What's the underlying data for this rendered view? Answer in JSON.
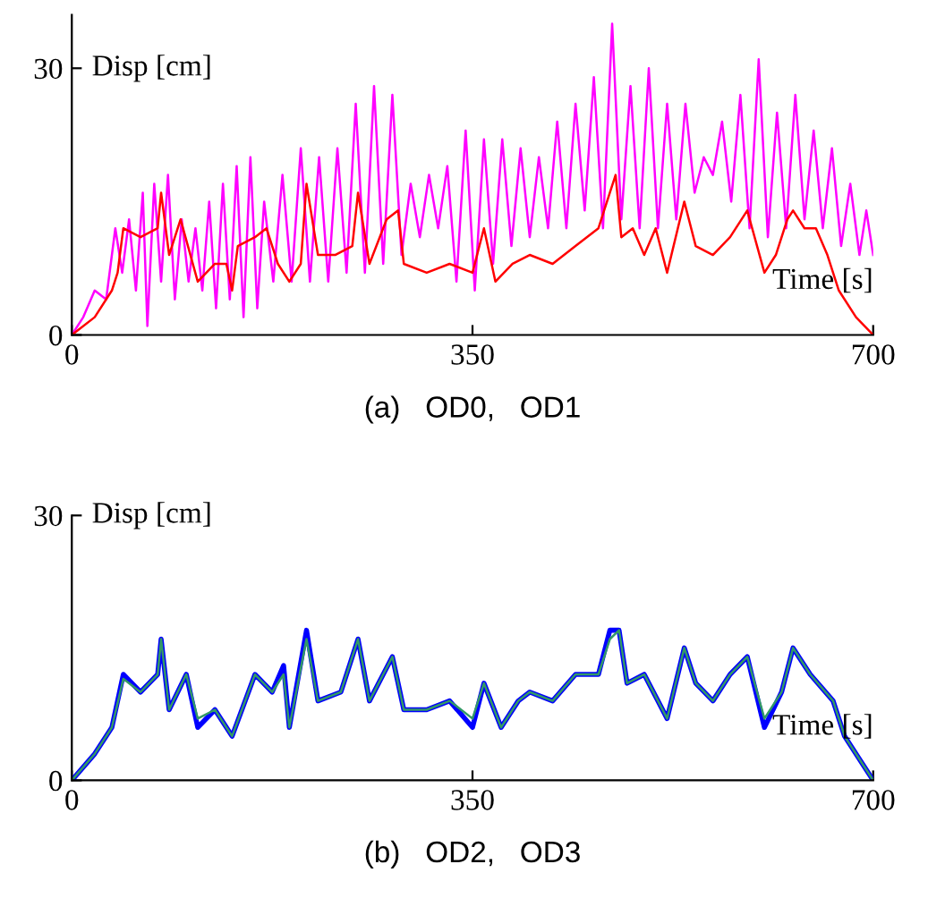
{
  "chart_data": [
    {
      "type": "line",
      "xlabel": "Time [s]",
      "ylabel": "Disp [cm]",
      "annotations": [
        "(a)   OD0,   OD1"
      ],
      "xlim": [
        0,
        700
      ],
      "ylim": [
        0,
        36
      ],
      "xticks": [
        0,
        350,
        700
      ],
      "yticks": [
        0,
        30
      ],
      "series": [
        {
          "color": "#ff00ff",
          "x": [
            0,
            10,
            20,
            30,
            38,
            44,
            50,
            56,
            62,
            66,
            72,
            78,
            84,
            90,
            96,
            102,
            108,
            114,
            120,
            126,
            132,
            138,
            144,
            150,
            156,
            162,
            168,
            176,
            184,
            192,
            200,
            208,
            216,
            224,
            232,
            240,
            248,
            256,
            264,
            272,
            280,
            288,
            296,
            304,
            312,
            320,
            328,
            336,
            344,
            352,
            360,
            368,
            376,
            384,
            392,
            400,
            408,
            416,
            424,
            432,
            440,
            448,
            456,
            464,
            472,
            480,
            488,
            496,
            504,
            512,
            520,
            528,
            536,
            544,
            552,
            560,
            568,
            576,
            584,
            592,
            600,
            608,
            616,
            624,
            632,
            640,
            648,
            656,
            664,
            672,
            680,
            688,
            694,
            700
          ],
          "values": [
            0,
            2,
            5,
            4,
            12,
            7,
            13,
            5,
            16,
            1,
            17,
            6,
            18,
            4,
            13,
            6,
            12,
            5,
            15,
            3,
            17,
            4,
            19,
            2,
            20,
            3,
            15,
            6,
            18,
            6,
            21,
            6,
            20,
            6,
            21,
            7,
            26,
            7,
            28,
            8,
            27,
            9,
            17,
            11,
            18,
            12,
            19,
            6,
            23,
            5,
            22,
            8,
            22,
            10,
            21,
            11,
            20,
            12,
            24,
            12,
            26,
            14,
            29,
            12,
            35,
            13,
            28,
            12,
            30,
            12,
            26,
            13,
            26,
            16,
            20,
            18,
            24,
            15,
            27,
            12,
            31,
            11,
            25,
            12,
            27,
            13,
            23,
            12,
            21,
            10,
            17,
            9,
            14,
            9
          ]
        },
        {
          "color": "#ff0000",
          "x": [
            0,
            20,
            35,
            40,
            45,
            60,
            75,
            78,
            85,
            95,
            110,
            125,
            135,
            140,
            145,
            160,
            170,
            180,
            190,
            200,
            205,
            215,
            230,
            245,
            250,
            260,
            275,
            285,
            290,
            310,
            330,
            350,
            360,
            370,
            385,
            400,
            420,
            440,
            460,
            470,
            475,
            480,
            490,
            500,
            510,
            520,
            535,
            545,
            560,
            575,
            590,
            605,
            615,
            625,
            630,
            640,
            650,
            660,
            670,
            685,
            700
          ],
          "values": [
            0,
            2,
            5,
            7,
            12,
            11,
            12,
            16,
            9,
            13,
            6,
            8,
            8,
            5,
            10,
            11,
            12,
            8,
            6,
            8,
            17,
            9,
            9,
            10,
            16,
            8,
            13,
            14,
            8,
            7,
            8,
            7,
            12,
            6,
            8,
            9,
            8,
            10,
            12,
            16,
            18,
            11,
            12,
            9,
            12,
            7,
            15,
            10,
            9,
            11,
            14,
            7,
            9,
            13,
            14,
            12,
            12,
            9,
            5,
            2,
            0
          ]
        }
      ]
    },
    {
      "type": "line",
      "xlabel": "Time [s]",
      "ylabel": "Disp [cm]",
      "annotations": [
        "(b)   OD2,   OD3"
      ],
      "xlim": [
        0,
        700
      ],
      "ylim": [
        0,
        30
      ],
      "xticks": [
        0,
        350,
        700
      ],
      "yticks": [
        0,
        30
      ],
      "series": [
        {
          "color": "#0000ff",
          "x": [
            0,
            20,
            35,
            45,
            60,
            75,
            78,
            85,
            100,
            110,
            125,
            140,
            160,
            175,
            185,
            190,
            205,
            215,
            235,
            250,
            260,
            280,
            290,
            310,
            330,
            350,
            360,
            375,
            390,
            400,
            420,
            440,
            460,
            470,
            478,
            485,
            500,
            520,
            535,
            545,
            560,
            575,
            590,
            605,
            620,
            630,
            645,
            665,
            675,
            690,
            700
          ],
          "values": [
            0,
            3,
            6,
            12,
            10,
            12,
            16,
            8,
            12,
            6,
            8,
            5,
            12,
            10,
            13,
            6,
            17,
            9,
            10,
            16,
            9,
            14,
            8,
            8,
            9,
            6,
            11,
            6,
            9,
            10,
            9,
            12,
            12,
            17,
            17,
            11,
            12,
            7,
            15,
            11,
            9,
            12,
            14,
            6,
            10,
            15,
            12,
            9,
            5,
            2,
            0
          ]
        },
        {
          "color": "#339966",
          "x": [
            0,
            20,
            35,
            45,
            60,
            75,
            78,
            85,
            100,
            110,
            125,
            140,
            160,
            175,
            185,
            190,
            205,
            215,
            235,
            250,
            260,
            280,
            290,
            310,
            330,
            350,
            360,
            375,
            390,
            400,
            420,
            440,
            460,
            470,
            478,
            485,
            500,
            520,
            535,
            545,
            560,
            575,
            590,
            605,
            620,
            630,
            645,
            665,
            675,
            690,
            700
          ],
          "values": [
            0,
            3,
            6,
            11.5,
            10,
            12,
            16,
            8,
            12,
            7,
            8,
            5,
            12,
            10,
            12,
            6,
            16,
            9,
            10,
            16,
            9,
            14,
            8,
            8,
            9,
            7,
            11,
            6,
            9,
            10,
            9,
            12,
            12,
            16,
            17,
            11,
            12,
            7,
            15,
            11,
            9,
            12,
            14,
            7,
            10,
            15,
            12,
            9,
            5,
            2,
            0
          ]
        }
      ]
    }
  ]
}
